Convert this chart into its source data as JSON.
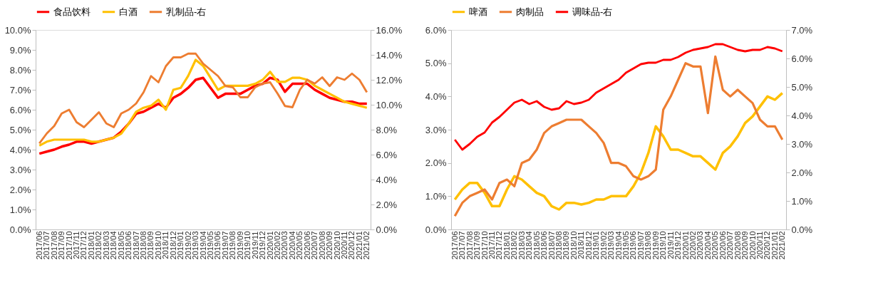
{
  "chart_data": [
    {
      "type": "line",
      "legend": "top",
      "categories": [
        "2017/06",
        "2017/07",
        "2017/08",
        "2017/09",
        "2017/10",
        "2017/11",
        "2017/12",
        "2018/01",
        "2018/02",
        "2018/03",
        "2018/04",
        "2018/05",
        "2018/06",
        "2018/07",
        "2018/08",
        "2018/09",
        "2018/10",
        "2018/11",
        "2018/12",
        "2019/01",
        "2019/02",
        "2019/03",
        "2019/04",
        "2019/05",
        "2019/06",
        "2019/07",
        "2019/08",
        "2019/09",
        "2019/10",
        "2019/11",
        "2019/12",
        "2020/01",
        "2020/02",
        "2020/03",
        "2020/04",
        "2020/05",
        "2020/06",
        "2020/07",
        "2020/08",
        "2020/09",
        "2020/10",
        "2020/11",
        "2020/12",
        "2021/01",
        "2021/02"
      ],
      "ylim": [
        0,
        10
      ],
      "yticks": [
        {
          "value": 0,
          "label": "0.0%"
        },
        {
          "value": 1,
          "label": "1.0%"
        },
        {
          "value": 2,
          "label": "2.0%"
        },
        {
          "value": 3,
          "label": "3.0%"
        },
        {
          "value": 4,
          "label": "4.0%"
        },
        {
          "value": 5,
          "label": "5.0%"
        },
        {
          "value": 6,
          "label": "6.0%"
        },
        {
          "value": 7,
          "label": "7.0%"
        },
        {
          "value": 8,
          "label": "8.0%"
        },
        {
          "value": 9,
          "label": "9.0%"
        },
        {
          "value": 10,
          "label": "10.0%"
        }
      ],
      "y2lim": [
        0,
        16
      ],
      "y2ticks": [
        {
          "value": 0,
          "label": "0.0%"
        },
        {
          "value": 2,
          "label": "2.0%"
        },
        {
          "value": 4,
          "label": "4.0%"
        },
        {
          "value": 6,
          "label": "6.0%"
        },
        {
          "value": 8,
          "label": "8.0%"
        },
        {
          "value": 10,
          "label": "10.0%"
        },
        {
          "value": 12,
          "label": "12.0%"
        },
        {
          "value": 14,
          "label": "14.0%"
        },
        {
          "value": 16,
          "label": "16.0%"
        }
      ],
      "series": [
        {
          "name": "食品饮料",
          "color": "#ff0000",
          "values": [
            3.8,
            3.9,
            4.0,
            4.15,
            4.25,
            4.4,
            4.4,
            4.3,
            4.4,
            4.5,
            4.6,
            4.9,
            5.3,
            5.8,
            5.9,
            6.1,
            6.3,
            6.1,
            6.6,
            6.8,
            7.1,
            7.5,
            7.6,
            7.1,
            6.6,
            6.8,
            6.8,
            6.8,
            7.0,
            7.2,
            7.3,
            7.6,
            7.5,
            6.9,
            7.3,
            7.3,
            7.3,
            7.0,
            6.8,
            6.6,
            6.5,
            6.4,
            6.4,
            6.3,
            6.3
          ]
        },
        {
          "name": "白酒",
          "color": "#ffc000",
          "values": [
            4.2,
            4.4,
            4.5,
            4.5,
            4.5,
            4.5,
            4.5,
            4.4,
            4.4,
            4.5,
            4.6,
            4.8,
            5.3,
            5.9,
            6.1,
            6.2,
            6.5,
            6.0,
            7.0,
            7.1,
            7.7,
            8.5,
            8.2,
            7.6,
            7.0,
            7.2,
            7.2,
            7.2,
            7.2,
            7.3,
            7.5,
            7.9,
            7.4,
            7.4,
            7.6,
            7.6,
            7.5,
            7.2,
            7.0,
            6.8,
            6.6,
            6.4,
            6.3,
            6.2,
            6.1
          ]
        },
        {
          "name": "乳制品-右",
          "color": "#ed7d31",
          "axis": "y2",
          "values": [
            6.9,
            7.7,
            8.3,
            9.3,
            9.6,
            8.6,
            8.2,
            8.8,
            9.4,
            8.5,
            8.2,
            9.3,
            9.6,
            10.1,
            11.0,
            12.3,
            11.8,
            13.1,
            13.8,
            13.8,
            14.1,
            14.1,
            13.3,
            12.8,
            12.3,
            11.5,
            11.4,
            10.6,
            10.6,
            11.4,
            11.7,
            11.8,
            10.9,
            9.9,
            9.8,
            11.2,
            12.0,
            11.7,
            12.2,
            11.5,
            12.2,
            12.0,
            12.5,
            12.0,
            11.0
          ]
        }
      ]
    },
    {
      "type": "line",
      "legend": "top",
      "categories": [
        "2017/06",
        "2017/07",
        "2017/08",
        "2017/09",
        "2017/10",
        "2017/11",
        "2017/12",
        "2018/01",
        "2018/02",
        "2018/03",
        "2018/04",
        "2018/05",
        "2018/06",
        "2018/07",
        "2018/08",
        "2018/09",
        "2018/10",
        "2018/11",
        "2018/12",
        "2019/01",
        "2019/02",
        "2019/03",
        "2019/04",
        "2019/05",
        "2019/06",
        "2019/07",
        "2019/08",
        "2019/09",
        "2019/10",
        "2019/11",
        "2019/12",
        "2020/01",
        "2020/02",
        "2020/03",
        "2020/04",
        "2020/05",
        "2020/06",
        "2020/07",
        "2020/08",
        "2020/09",
        "2020/10",
        "2020/11",
        "2020/12",
        "2021/01",
        "2021/02"
      ],
      "ylim": [
        0,
        6
      ],
      "yticks": [
        {
          "value": 0,
          "label": "0.0%"
        },
        {
          "value": 1,
          "label": "1.0%"
        },
        {
          "value": 2,
          "label": "2.0%"
        },
        {
          "value": 3,
          "label": "3.0%"
        },
        {
          "value": 4,
          "label": "4.0%"
        },
        {
          "value": 5,
          "label": "5.0%"
        },
        {
          "value": 6,
          "label": "6.0%"
        }
      ],
      "y2lim": [
        0,
        7
      ],
      "y2ticks": [
        {
          "value": 0,
          "label": "0.0%"
        },
        {
          "value": 1,
          "label": "1.0%"
        },
        {
          "value": 2,
          "label": "2.0%"
        },
        {
          "value": 3,
          "label": "3.0%"
        },
        {
          "value": 4,
          "label": "4.0%"
        },
        {
          "value": 5,
          "label": "5.0%"
        },
        {
          "value": 6,
          "label": "6.0%"
        },
        {
          "value": 7,
          "label": "7.0%"
        }
      ],
      "series": [
        {
          "name": "啤酒",
          "color": "#ffc000",
          "values": [
            0.9,
            1.2,
            1.4,
            1.4,
            1.1,
            0.7,
            0.7,
            1.2,
            1.6,
            1.5,
            1.3,
            1.1,
            1.0,
            0.7,
            0.6,
            0.8,
            0.8,
            0.75,
            0.8,
            0.9,
            0.9,
            1.0,
            1.0,
            1.0,
            1.3,
            1.7,
            2.3,
            3.1,
            2.8,
            2.4,
            2.4,
            2.3,
            2.2,
            2.2,
            2.0,
            1.8,
            2.3,
            2.5,
            2.8,
            3.2,
            3.4,
            3.7,
            4.0,
            3.9,
            4.1
          ]
        },
        {
          "name": "肉制品",
          "color": "#ed7d31",
          "values": [
            0.4,
            0.8,
            1.0,
            1.1,
            1.2,
            0.9,
            1.4,
            1.5,
            1.3,
            2.0,
            2.1,
            2.4,
            2.9,
            3.1,
            3.2,
            3.3,
            3.3,
            3.3,
            3.1,
            2.9,
            2.6,
            2.0,
            2.0,
            1.9,
            1.6,
            1.5,
            1.6,
            1.8,
            3.6,
            4.0,
            4.5,
            5.0,
            4.9,
            4.9,
            3.5,
            5.2,
            4.2,
            4.0,
            4.2,
            4.0,
            3.8,
            3.3,
            3.1,
            3.1,
            2.7
          ]
        },
        {
          "name": "调味品-右",
          "color": "#ff0000",
          "axis": "y2",
          "values": [
            3.15,
            2.8,
            3.0,
            3.25,
            3.4,
            3.75,
            3.95,
            4.2,
            4.45,
            4.55,
            4.4,
            4.5,
            4.3,
            4.2,
            4.25,
            4.5,
            4.4,
            4.45,
            4.55,
            4.8,
            4.95,
            5.1,
            5.25,
            5.5,
            5.65,
            5.8,
            5.85,
            5.85,
            5.95,
            5.95,
            6.05,
            6.2,
            6.3,
            6.35,
            6.4,
            6.5,
            6.5,
            6.4,
            6.3,
            6.25,
            6.3,
            6.3,
            6.4,
            6.35,
            6.25
          ]
        }
      ]
    }
  ]
}
